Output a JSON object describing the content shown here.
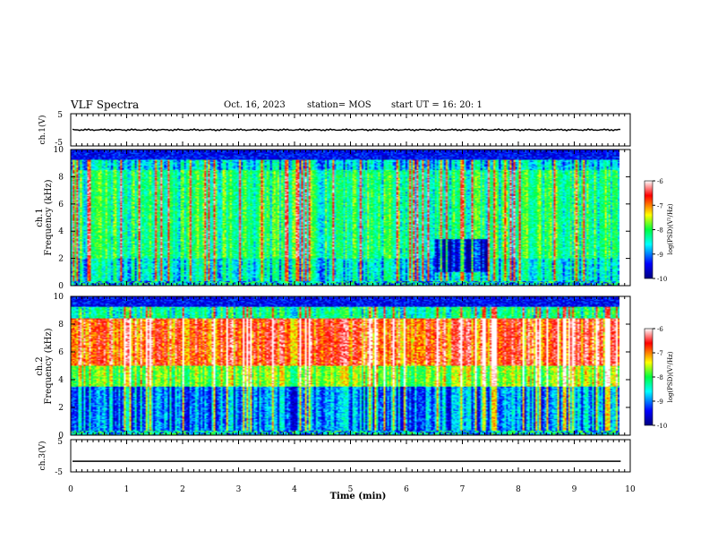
{
  "header": {
    "title": "VLF Spectra",
    "date": "Oct. 16, 2023",
    "station": "station= MOS",
    "start_ut": "start  UT =   16: 20: 1"
  },
  "chart_data": [
    {
      "type": "line",
      "panel": "ch1-waveform",
      "ylabel": "ch.1(V)",
      "ylim": [
        -5,
        5
      ],
      "ytick_labels": [
        "5",
        "-5"
      ],
      "trace_level": 0,
      "xlim": [
        0,
        9.83
      ]
    },
    {
      "type": "heatmap",
      "panel": "ch1-spectrogram",
      "ylabel_top": "ch.1",
      "ylabel": "Frequency (kHz)",
      "ylim": [
        0,
        10
      ],
      "ytick_labels": [
        "0",
        "2",
        "4",
        "6",
        "8",
        "10"
      ],
      "xlim": [
        0,
        9.83
      ],
      "colorbar": {
        "label": "log(PSD)(V²/Hz)",
        "range": [
          -10,
          -6
        ],
        "tick_labels": [
          "-6",
          "-7",
          "-8",
          "-9",
          "-10"
        ]
      }
    },
    {
      "type": "heatmap",
      "panel": "ch2-spectrogram",
      "ylabel_top": "ch.2",
      "ylabel": "Frequency (kHz)",
      "ylim": [
        0,
        10
      ],
      "ytick_labels": [
        "0",
        "2",
        "4",
        "6",
        "8",
        "10"
      ],
      "xlim": [
        0,
        9.83
      ],
      "colorbar": {
        "label": "log(PSD)(V²/Hz)",
        "range": [
          -10,
          -6
        ],
        "tick_labels": [
          "-6",
          "-7",
          "-8",
          "-9",
          "-10"
        ]
      }
    },
    {
      "type": "line",
      "panel": "ch3-waveform",
      "ylabel": "ch.3(V)",
      "ylim": [
        -5,
        5
      ],
      "ytick_labels": [
        "5",
        "-5"
      ],
      "trace_level": -1.7,
      "xlim": [
        0,
        9.83
      ]
    }
  ],
  "xaxis": {
    "label": "Time (min)",
    "range": [
      0,
      10
    ],
    "tick_labels": [
      "0",
      "1",
      "2",
      "3",
      "4",
      "5",
      "6",
      "7",
      "8",
      "9",
      "10"
    ]
  },
  "colors": {
    "colormap": [
      "#000080",
      "#0000ff",
      "#00ffff",
      "#00ff40",
      "#ffff00",
      "#ff0000",
      "#ffffff"
    ]
  }
}
